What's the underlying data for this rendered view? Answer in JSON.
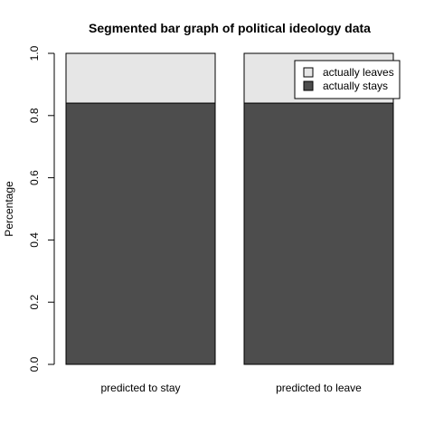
{
  "chart_data": {
    "type": "bar",
    "stacked": true,
    "title": "Segmented bar graph of political ideology data",
    "xlabel": "",
    "ylabel": "Percentage",
    "ylim": [
      0,
      1
    ],
    "yticks": [
      "0.0",
      "0.2",
      "0.4",
      "0.6",
      "0.8",
      "1.0"
    ],
    "categories": [
      "predicted to stay",
      "predicted to leave"
    ],
    "series": [
      {
        "name": "actually stays",
        "values": [
          0.84,
          0.84
        ],
        "color": "#4d4d4d"
      },
      {
        "name": "actually leaves",
        "values": [
          0.16,
          0.16
        ],
        "color": "#e6e6e6"
      }
    ],
    "legend": {
      "position": "top-right",
      "entries": [
        "actually leaves",
        "actually stays"
      ],
      "colors": [
        "#e6e6e6",
        "#4d4d4d"
      ]
    },
    "grid": false
  }
}
